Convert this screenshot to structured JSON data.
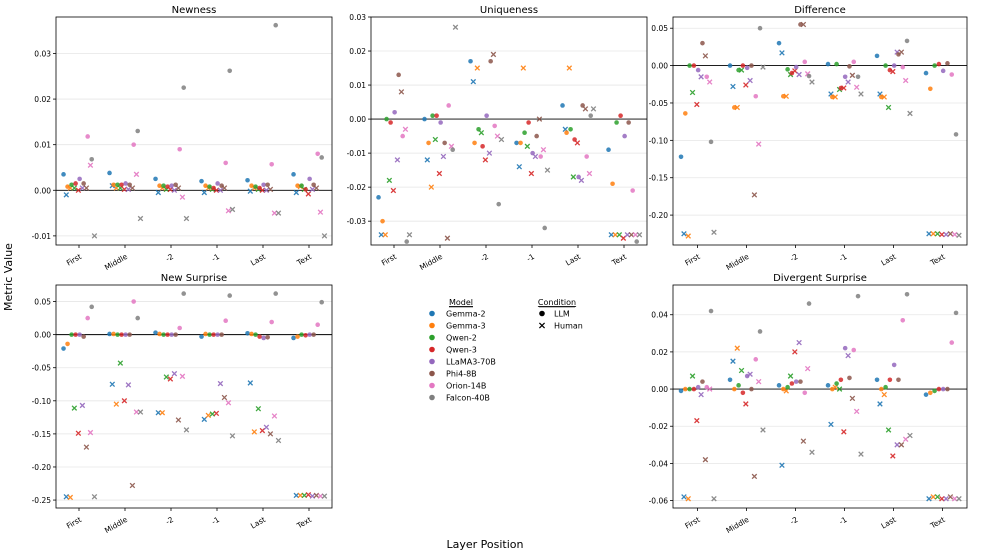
{
  "figure": {
    "ylabel": "Metric Value",
    "xlabel": "Layer Position"
  },
  "legend": {
    "model_title": "Model",
    "condition_title": "Condition",
    "models": [
      {
        "name": "Gemma-2",
        "color": "#1f77b4"
      },
      {
        "name": "Gemma-3",
        "color": "#ff7f0e"
      },
      {
        "name": "Qwen-2",
        "color": "#2ca02c"
      },
      {
        "name": "Qwen-3",
        "color": "#d62728"
      },
      {
        "name": "LLaMA3-70B",
        "color": "#9467bd"
      },
      {
        "name": "Phi4-8B",
        "color": "#8c564b"
      },
      {
        "name": "Orion-14B",
        "color": "#e377c2"
      },
      {
        "name": "Falcon-40B",
        "color": "#7f7f7f"
      }
    ],
    "conditions": [
      {
        "name": "LLM",
        "marker": "circle"
      },
      {
        "name": "Human",
        "marker": "x"
      }
    ]
  },
  "chart_data": [
    {
      "type": "scatter",
      "title": "Newness",
      "categories": [
        "First",
        "Middle",
        "-2",
        "-1",
        "Last",
        "Text"
      ],
      "ylim": [
        -0.012,
        0.038
      ],
      "yticks": [
        -0.01,
        0.0,
        0.01,
        0.02,
        0.03
      ],
      "series": [
        {
          "name": "Gemma-2",
          "llm": [
            0.0035,
            0.0038,
            0.0025,
            0.002,
            0.0022,
            0.0035
          ],
          "human": [
            -0.001,
            0.001,
            -0.0005,
            -0.0005,
            -0.0002,
            -0.0005
          ]
        },
        {
          "name": "Gemma-3",
          "llm": [
            0.0008,
            0.0012,
            0.001,
            0.001,
            0.001,
            0.001
          ],
          "human": [
            0.0005,
            0.0005,
            0.0005,
            0.0005,
            0.0005,
            0.0008
          ]
        },
        {
          "name": "Qwen-2",
          "llm": [
            0.0012,
            0.0012,
            0.001,
            0.0008,
            0.0008,
            0.001
          ],
          "human": [
            0.0005,
            0.0005,
            0.0002,
            0.0002,
            0.0002,
            0.0002
          ]
        },
        {
          "name": "Qwen-3",
          "llm": [
            0.0015,
            0.0012,
            0.0008,
            0.0005,
            0.0005,
            0.0002
          ],
          "human": [
            0.0,
            0.0002,
            0.0002,
            0.0,
            0.0,
            -0.0008
          ]
        },
        {
          "name": "LLaMA3-70B",
          "llm": [
            0.0025,
            0.0015,
            0.001,
            0.0015,
            0.0012,
            0.0025
          ],
          "human": [
            0.0005,
            0.0002,
            0.0,
            0.0,
            0.0,
            0.0002
          ]
        },
        {
          "name": "Phi4-8B",
          "llm": [
            0.0015,
            0.0012,
            0.0012,
            0.001,
            0.0012,
            0.0012
          ],
          "human": [
            0.0005,
            0.0005,
            0.0005,
            0.0005,
            0.0002,
            0.0005
          ]
        },
        {
          "name": "Orion-14B",
          "llm": [
            0.0118,
            0.01,
            0.009,
            0.006,
            0.0057,
            0.008
          ],
          "human": [
            0.0055,
            0.0035,
            -0.0015,
            -0.0045,
            -0.005,
            -0.0048
          ]
        },
        {
          "name": "Falcon-40B",
          "llm": [
            0.0068,
            0.013,
            0.0225,
            0.0262,
            0.0362,
            0.0072
          ],
          "human": [
            -0.01,
            -0.0062,
            -0.0062,
            -0.0042,
            -0.005,
            -0.01
          ]
        }
      ]
    },
    {
      "type": "scatter",
      "title": "Uniqueness",
      "categories": [
        "First",
        "Middle",
        "-2",
        "-1",
        "Last",
        "Text"
      ],
      "ylim": [
        -0.037,
        0.03
      ],
      "yticks": [
        -0.03,
        -0.02,
        -0.01,
        0.0,
        0.01,
        0.02,
        0.03
      ],
      "series": [
        {
          "name": "Gemma-2",
          "llm": [
            -0.023,
            0.0,
            0.017,
            -0.007,
            0.004,
            -0.009
          ],
          "human": [
            -0.034,
            -0.012,
            0.011,
            -0.014,
            -0.003,
            -0.034
          ]
        },
        {
          "name": "Gemma-3",
          "llm": [
            -0.03,
            -0.007,
            -0.007,
            -0.007,
            -0.004,
            -0.019
          ],
          "human": [
            -0.034,
            -0.02,
            0.015,
            0.015,
            0.015,
            -0.034
          ]
        },
        {
          "name": "Qwen-2",
          "llm": [
            0.0,
            0.001,
            -0.003,
            -0.004,
            -0.003,
            -0.001
          ],
          "human": [
            -0.018,
            -0.006,
            -0.004,
            -0.008,
            -0.017,
            -0.034
          ]
        },
        {
          "name": "Qwen-3",
          "llm": [
            -0.001,
            0.001,
            -0.008,
            -0.001,
            -0.006,
            0.001
          ],
          "human": [
            -0.021,
            -0.016,
            -0.012,
            -0.016,
            -0.007,
            -0.035
          ]
        },
        {
          "name": "LLaMA3-70B",
          "llm": [
            0.002,
            -0.001,
            0.001,
            -0.01,
            -0.017,
            -0.005
          ],
          "human": [
            -0.012,
            -0.011,
            -0.01,
            -0.011,
            -0.018,
            -0.034
          ]
        },
        {
          "name": "Phi4-8B",
          "llm": [
            0.013,
            -0.007,
            0.017,
            -0.005,
            0.004,
            -0.001
          ],
          "human": [
            0.008,
            -0.035,
            0.019,
            0.0,
            0.003,
            -0.034
          ]
        },
        {
          "name": "Orion-14B",
          "llm": [
            -0.005,
            0.004,
            -0.002,
            -0.011,
            -0.011,
            -0.021
          ],
          "human": [
            -0.003,
            -0.008,
            -0.005,
            -0.009,
            -0.016,
            -0.034
          ]
        },
        {
          "name": "Falcon-40B",
          "llm": [
            -0.036,
            -0.009,
            -0.025,
            -0.032,
            0.001,
            -0.036
          ],
          "human": [
            -0.034,
            0.027,
            -0.006,
            -0.015,
            0.003,
            -0.034
          ]
        }
      ]
    },
    {
      "type": "scatter",
      "title": "Difference",
      "categories": [
        "First",
        "Middle",
        "-2",
        "-1",
        "Last",
        "Text"
      ],
      "ylim": [
        -0.24,
        0.065
      ],
      "yticks": [
        -0.2,
        -0.15,
        -0.1,
        -0.05,
        0.0,
        0.05
      ],
      "series": [
        {
          "name": "Gemma-2",
          "llm": [
            -0.122,
            0.0,
            0.03,
            0.002,
            0.013,
            -0.01
          ],
          "human": [
            -0.225,
            -0.028,
            0.017,
            -0.038,
            -0.038,
            -0.225
          ]
        },
        {
          "name": "Gemma-3",
          "llm": [
            -0.064,
            -0.056,
            -0.041,
            -0.042,
            -0.042,
            -0.031
          ],
          "human": [
            -0.228,
            -0.056,
            -0.041,
            -0.042,
            -0.042,
            -0.225
          ]
        },
        {
          "name": "Qwen-2",
          "llm": [
            0.0,
            -0.006,
            -0.005,
            0.002,
            0.0,
            0.0
          ],
          "human": [
            -0.036,
            -0.006,
            -0.012,
            -0.032,
            -0.056,
            -0.225
          ]
        },
        {
          "name": "Qwen-3",
          "llm": [
            0.0,
            0.0,
            -0.01,
            -0.03,
            -0.006,
            0.002
          ],
          "human": [
            -0.052,
            -0.026,
            -0.007,
            -0.03,
            -0.008,
            -0.226
          ]
        },
        {
          "name": "LLaMA3-70B",
          "llm": [
            -0.006,
            -0.003,
            -0.002,
            -0.015,
            0.0,
            -0.007
          ],
          "human": [
            -0.015,
            -0.02,
            -0.012,
            -0.022,
            0.018,
            -0.226
          ]
        },
        {
          "name": "Phi4-8B",
          "llm": [
            0.03,
            0.0,
            0.055,
            -0.001,
            0.015,
            0.003
          ],
          "human": [
            0.013,
            -0.173,
            0.055,
            -0.013,
            0.018,
            -0.225
          ]
        },
        {
          "name": "Orion-14B",
          "llm": [
            -0.015,
            -0.041,
            0.005,
            0.005,
            -0.002,
            -0.012
          ],
          "human": [
            -0.022,
            -0.105,
            -0.011,
            -0.029,
            -0.02,
            -0.226
          ]
        },
        {
          "name": "Falcon-40B",
          "llm": [
            -0.102,
            0.05,
            -0.014,
            -0.015,
            0.033,
            -0.092
          ],
          "human": [
            -0.223,
            -0.002,
            -0.022,
            -0.038,
            -0.064,
            -0.227
          ]
        }
      ]
    },
    {
      "type": "scatter",
      "title": "New Surprise",
      "categories": [
        "First",
        "Middle",
        "-2",
        "-1",
        "Last",
        "Text"
      ],
      "ylim": [
        -0.262,
        0.075
      ],
      "yticks": [
        -0.25,
        -0.2,
        -0.15,
        -0.1,
        -0.05,
        0.0,
        0.05
      ],
      "series": [
        {
          "name": "Gemma-2",
          "llm": [
            -0.021,
            0.001,
            0.003,
            -0.003,
            0.002,
            -0.005
          ],
          "human": [
            -0.245,
            -0.075,
            -0.118,
            -0.128,
            -0.073,
            -0.243
          ]
        },
        {
          "name": "Gemma-3",
          "llm": [
            -0.014,
            0.001,
            0.001,
            0.001,
            0.001,
            -0.003
          ],
          "human": [
            -0.246,
            -0.105,
            -0.118,
            -0.122,
            -0.147,
            -0.243
          ]
        },
        {
          "name": "Qwen-2",
          "llm": [
            0.0,
            0.0,
            0.0,
            0.0,
            0.0,
            0.0
          ],
          "human": [
            -0.111,
            -0.043,
            -0.064,
            -0.12,
            -0.112,
            -0.243
          ]
        },
        {
          "name": "Qwen-3",
          "llm": [
            0.0,
            0.0,
            0.0,
            0.0,
            -0.003,
            -0.001
          ],
          "human": [
            -0.149,
            -0.1,
            -0.067,
            -0.119,
            -0.145,
            -0.242
          ]
        },
        {
          "name": "LLaMA3-70B",
          "llm": [
            0.0,
            0.0,
            0.0,
            0.0,
            -0.005,
            0.0
          ],
          "human": [
            -0.107,
            -0.076,
            -0.059,
            -0.074,
            -0.14,
            -0.244
          ]
        },
        {
          "name": "Phi4-8B",
          "llm": [
            -0.003,
            0.0,
            0.0,
            0.0,
            -0.004,
            0.0
          ],
          "human": [
            -0.17,
            -0.228,
            -0.129,
            -0.095,
            -0.15,
            -0.243
          ]
        },
        {
          "name": "Orion-14B",
          "llm": [
            0.025,
            0.05,
            0.01,
            0.021,
            0.019,
            0.015
          ],
          "human": [
            -0.148,
            -0.117,
            -0.063,
            -0.103,
            -0.123,
            -0.244
          ]
        },
        {
          "name": "Falcon-40B",
          "llm": [
            0.042,
            0.025,
            0.062,
            0.059,
            0.062,
            0.049
          ],
          "human": [
            -0.245,
            -0.117,
            -0.144,
            -0.153,
            -0.16,
            -0.244
          ]
        }
      ]
    },
    {
      "type": "scatter",
      "title": "Divergent Surprise",
      "categories": [
        "First",
        "Middle",
        "-2",
        "-1",
        "Last",
        "Text"
      ],
      "ylim": [
        -0.064,
        0.056
      ],
      "yticks": [
        -0.06,
        -0.04,
        -0.02,
        0.0,
        0.02,
        0.04
      ],
      "series": [
        {
          "name": "Gemma-2",
          "llm": [
            -0.001,
            0.005,
            0.002,
            0.002,
            0.005,
            -0.003
          ],
          "human": [
            -0.058,
            0.015,
            -0.041,
            -0.019,
            -0.008,
            -0.059
          ]
        },
        {
          "name": "Gemma-3",
          "llm": [
            0.0,
            0.0,
            0.0,
            0.0,
            0.0,
            -0.002
          ],
          "human": [
            -0.059,
            0.022,
            -0.001,
            0.001,
            -0.003,
            -0.058
          ]
        },
        {
          "name": "Qwen-2",
          "llm": [
            0.0,
            0.002,
            0.001,
            0.003,
            0.001,
            -0.001
          ],
          "human": [
            0.007,
            0.01,
            0.007,
            0.0,
            -0.022,
            -0.058
          ]
        },
        {
          "name": "Qwen-3",
          "llm": [
            0.0,
            -0.002,
            0.003,
            0.005,
            0.005,
            0.0
          ],
          "human": [
            -0.017,
            -0.008,
            0.02,
            -0.023,
            -0.036,
            -0.059
          ]
        },
        {
          "name": "LLaMA3-70B",
          "llm": [
            0.001,
            0.007,
            0.004,
            0.022,
            0.013,
            0.0
          ],
          "human": [
            -0.003,
            0.008,
            0.025,
            0.018,
            -0.03,
            -0.059
          ]
        },
        {
          "name": "Phi4-8B",
          "llm": [
            0.004,
            0.0,
            0.004,
            0.006,
            0.005,
            0.0
          ],
          "human": [
            -0.038,
            -0.047,
            -0.028,
            -0.005,
            -0.03,
            -0.058
          ]
        },
        {
          "name": "Orion-14B",
          "llm": [
            0.001,
            0.016,
            -0.002,
            0.021,
            0.037,
            0.025
          ],
          "human": [
            0.0,
            0.004,
            0.011,
            -0.012,
            -0.027,
            -0.059
          ]
        },
        {
          "name": "Falcon-40B",
          "llm": [
            0.042,
            0.031,
            0.046,
            0.05,
            0.051,
            0.041
          ],
          "human": [
            -0.059,
            -0.022,
            -0.034,
            -0.035,
            -0.025,
            -0.059
          ]
        }
      ]
    }
  ]
}
